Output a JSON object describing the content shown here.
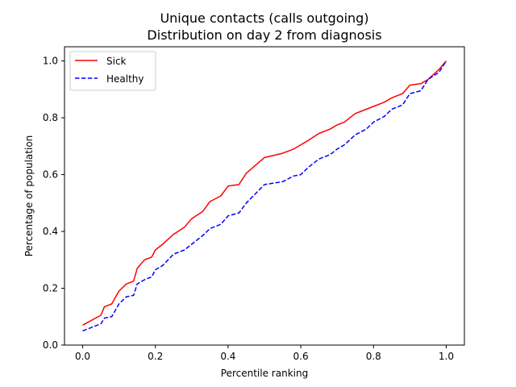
{
  "chart_data": {
    "type": "line",
    "title": "Unique contacts (calls outgoing)",
    "subtitle": "Distribution on day 2 from diagnosis",
    "xlabel": "Percentile ranking",
    "ylabel": "Percentage of population",
    "xlim": [
      -0.05,
      1.05
    ],
    "ylim": [
      0.0,
      1.05
    ],
    "xticks": [
      "0.0",
      "0.2",
      "0.4",
      "0.6",
      "0.8",
      "1.0"
    ],
    "yticks": [
      "0.0",
      "0.2",
      "0.4",
      "0.6",
      "0.8",
      "1.0"
    ],
    "grid": false,
    "legend_position": "top-left",
    "x": [
      0.0,
      0.05,
      0.06,
      0.08,
      0.1,
      0.12,
      0.14,
      0.15,
      0.17,
      0.19,
      0.2,
      0.22,
      0.25,
      0.28,
      0.3,
      0.33,
      0.35,
      0.38,
      0.4,
      0.43,
      0.45,
      0.5,
      0.55,
      0.58,
      0.6,
      0.62,
      0.65,
      0.68,
      0.7,
      0.72,
      0.75,
      0.78,
      0.8,
      0.83,
      0.85,
      0.88,
      0.9,
      0.93,
      0.95,
      0.98,
      1.0
    ],
    "series": [
      {
        "name": "Sick",
        "color": "#ff0000",
        "dash": "solid",
        "values": [
          0.07,
          0.105,
          0.135,
          0.145,
          0.19,
          0.215,
          0.225,
          0.27,
          0.3,
          0.31,
          0.335,
          0.355,
          0.39,
          0.415,
          0.445,
          0.47,
          0.505,
          0.525,
          0.56,
          0.565,
          0.605,
          0.66,
          0.675,
          0.69,
          0.705,
          0.72,
          0.745,
          0.76,
          0.775,
          0.785,
          0.815,
          0.83,
          0.84,
          0.855,
          0.87,
          0.885,
          0.915,
          0.92,
          0.935,
          0.97,
          1.0
        ]
      },
      {
        "name": "Healthy",
        "color": "#0000ff",
        "dash": "dashed",
        "values": [
          0.05,
          0.075,
          0.095,
          0.1,
          0.145,
          0.17,
          0.175,
          0.215,
          0.23,
          0.24,
          0.265,
          0.28,
          0.32,
          0.335,
          0.355,
          0.385,
          0.41,
          0.425,
          0.455,
          0.465,
          0.5,
          0.565,
          0.575,
          0.595,
          0.6,
          0.625,
          0.655,
          0.67,
          0.69,
          0.705,
          0.74,
          0.76,
          0.785,
          0.805,
          0.83,
          0.845,
          0.885,
          0.895,
          0.935,
          0.96,
          1.0
        ]
      }
    ]
  }
}
